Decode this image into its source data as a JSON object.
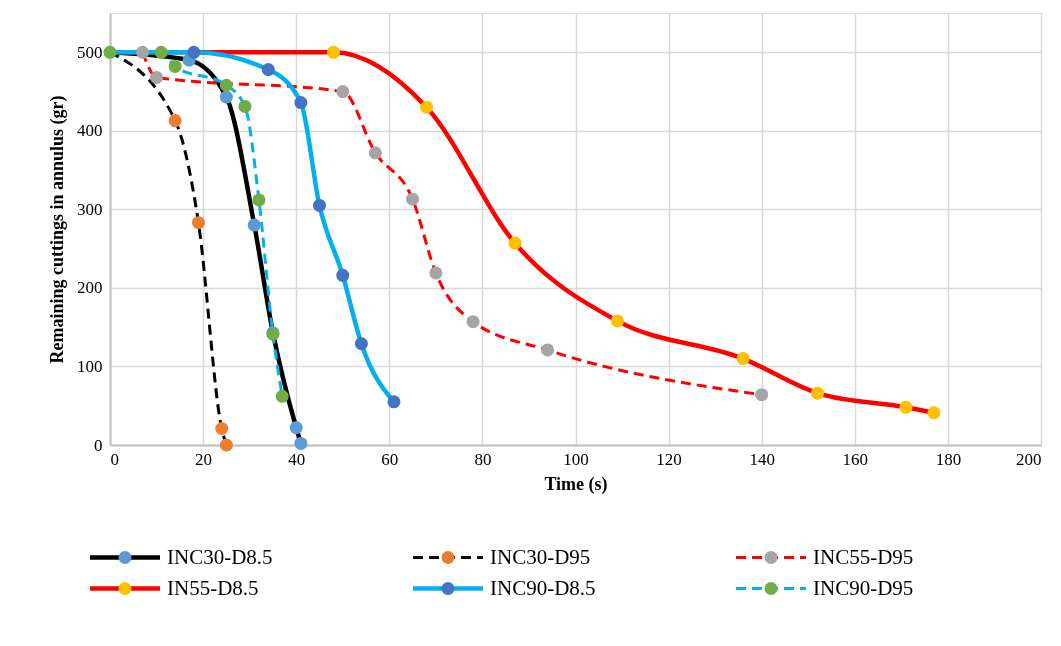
{
  "chart_data": {
    "type": "line",
    "xlabel": "Time (s)",
    "ylabel": "Remaining cuttings in annulus (gr)",
    "xlim": [
      0,
      200
    ],
    "xticks": [
      0,
      20,
      40,
      60,
      80,
      100,
      120,
      140,
      160,
      180,
      200
    ],
    "ylim": [
      0,
      550
    ],
    "yticks": [
      0,
      100,
      200,
      300,
      400,
      500
    ],
    "grid": true,
    "legend": "bottom",
    "marker": "circle",
    "series": [
      {
        "name": "INC30-D8.5",
        "color": "#000000",
        "line_style": "solid",
        "x": [
          0,
          17,
          25,
          31,
          35,
          40,
          41
        ],
        "values": [
          500,
          490,
          443,
          280,
          143,
          22,
          2
        ],
        "colors": [
          null,
          "#5b9bd5",
          "#5b9bd5",
          "#5b9bd5",
          "#5b9bd5",
          "#5b9bd5",
          "#5b9bd5"
        ]
      },
      {
        "name": "INC30-D95",
        "color": "#000000",
        "line_style": "dashed",
        "x": [
          0,
          14,
          19,
          24,
          25
        ],
        "values": [
          500,
          413,
          283,
          21,
          0
        ],
        "colors": [
          null,
          "#ed7d31",
          "#ed7d31",
          "#ed7d31",
          "#ed7d31"
        ]
      },
      {
        "name": "INC55-D95",
        "color": "#ff0000",
        "line_style": "dashed",
        "x": [
          7,
          10,
          50,
          57,
          65,
          70,
          78,
          94,
          140
        ],
        "values": [
          500,
          468,
          450,
          372,
          313,
          219,
          157,
          121,
          64
        ],
        "colors": [
          "#a5a5a5",
          "#a5a5a5",
          "#a5a5a5",
          "#a5a5a5",
          "#a5a5a5",
          "#a5a5a5",
          "#a5a5a5",
          "#a5a5a5",
          "#a5a5a5"
        ]
      },
      {
        "name": "IN55-D8.5",
        "color": "#ff0000",
        "line_style": "solid",
        "x": [
          0,
          48,
          68,
          87,
          109,
          136,
          152,
          171,
          177
        ],
        "values": [
          500,
          500,
          430,
          257,
          158,
          110,
          66,
          48,
          41
        ],
        "colors": [
          null,
          "#ffc000",
          "#ffc000",
          "#ffc000",
          "#ffc000",
          "#ffc000",
          "#ffc000",
          "#ffc000",
          "#ffc000"
        ]
      },
      {
        "name": "INC90-D8.5",
        "color": "#00b0f0",
        "line_style": "solid",
        "x": [
          0,
          18,
          34,
          41,
          45,
          50,
          54,
          61
        ],
        "values": [
          500,
          500,
          478,
          436,
          305,
          216,
          129,
          55
        ],
        "colors": [
          null,
          "#4472c4",
          "#4472c4",
          "#4472c4",
          "#4472c4",
          "#4472c4",
          "#4472c4",
          "#4472c4"
        ]
      },
      {
        "name": "INC90-D95",
        "color": "#00b0f0",
        "line_style": "dashed",
        "x": [
          0,
          11,
          14,
          25,
          29,
          32,
          35,
          37
        ],
        "values": [
          500,
          500,
          482,
          458,
          431,
          312,
          141,
          62
        ],
        "colors": [
          "#70ad47",
          "#70ad47",
          "#70ad47",
          "#70ad47",
          "#70ad47",
          "#70ad47",
          "#70ad47",
          "#70ad47"
        ]
      }
    ]
  }
}
